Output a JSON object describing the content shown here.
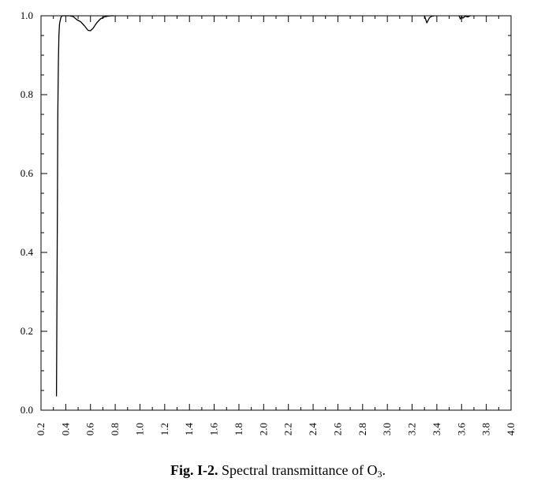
{
  "chart_data": {
    "type": "line",
    "title": "",
    "xlabel": "",
    "ylabel": "",
    "xlim": [
      0.2,
      4.0
    ],
    "ylim": [
      0.0,
      1.0
    ],
    "x_ticks": [
      "0.2",
      "0.4",
      "0.6",
      "0.8",
      "1.0",
      "1.2",
      "1.4",
      "1.6",
      "1.8",
      "2.0",
      "2.2",
      "2.4",
      "2.6",
      "2.8",
      "3.0",
      "3.2",
      "3.4",
      "3.6",
      "3.8",
      "4.0"
    ],
    "y_ticks": [
      "0.0",
      "0.2",
      "0.4",
      "0.6",
      "0.8",
      "1.0"
    ],
    "grid": false,
    "series": [
      {
        "x": [
          0.325,
          0.327,
          0.33,
          0.333,
          0.336,
          0.34,
          0.345,
          0.35,
          0.36,
          0.37,
          0.38,
          0.4,
          0.43,
          0.46,
          0.49,
          0.52,
          0.55,
          0.58,
          0.6,
          0.62,
          0.65,
          0.68,
          0.71,
          0.74,
          0.77,
          0.79
        ],
        "y": [
          0.035,
          0.15,
          0.35,
          0.56,
          0.75,
          0.88,
          0.95,
          0.98,
          0.995,
          1.0,
          1.0,
          1.0,
          1.0,
          0.998,
          0.99,
          0.985,
          0.975,
          0.963,
          0.962,
          0.968,
          0.982,
          0.992,
          0.997,
          0.999,
          1.0,
          1.0
        ]
      },
      {
        "x": [
          3.3,
          3.32,
          3.34,
          3.36,
          3.38
        ],
        "y": [
          1.0,
          0.982,
          0.995,
          0.999,
          1.0
        ]
      },
      {
        "x": [
          3.58,
          3.59,
          3.6,
          3.61,
          3.63,
          3.65,
          3.67
        ],
        "y": [
          1.0,
          0.992,
          0.998,
          0.994,
          0.999,
          0.997,
          1.0
        ]
      }
    ]
  },
  "caption": {
    "label": "Fig. I-2.",
    "text_main": " Spectral transmittance of O",
    "subscript": "3",
    "end": "."
  }
}
